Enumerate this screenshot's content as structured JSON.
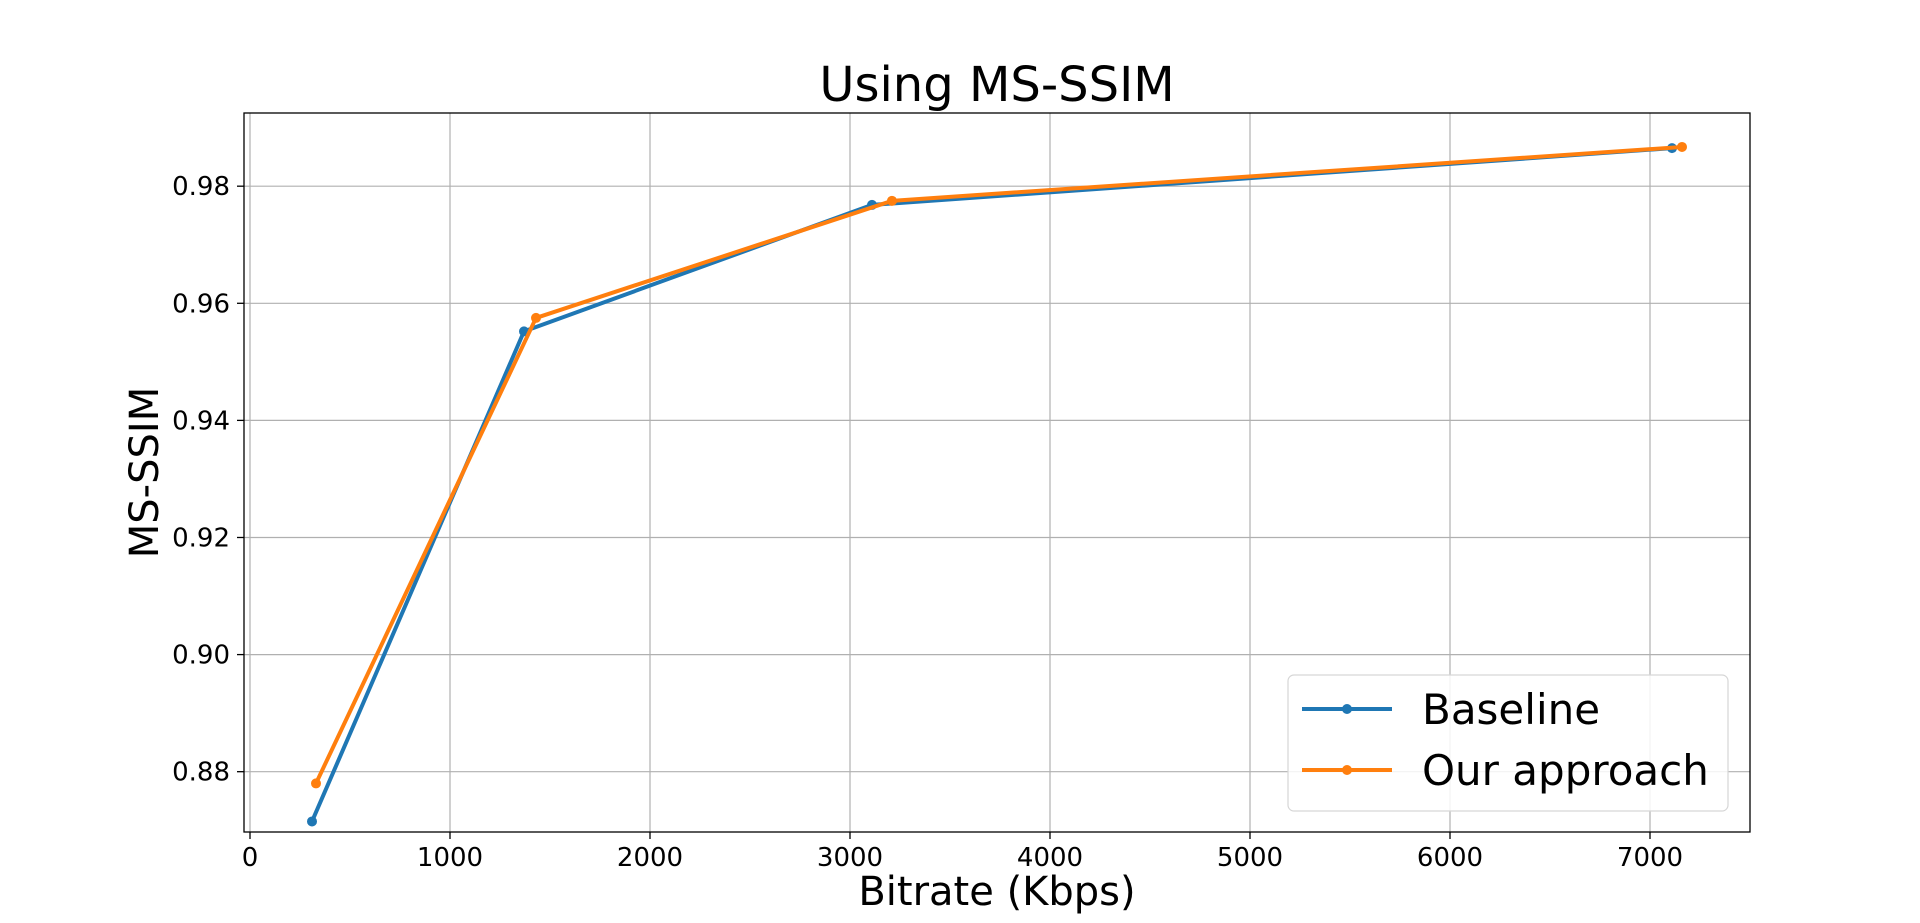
{
  "chart_data": {
    "type": "line",
    "title": "Using MS-SSIM",
    "xlabel": "Bitrate (Kbps)",
    "ylabel": "MS-SSIM",
    "xlim": [
      -30,
      7500
    ],
    "ylim": [
      0.8697,
      0.9925
    ],
    "xticks": [
      0,
      1000,
      2000,
      3000,
      4000,
      5000,
      6000,
      7000
    ],
    "yticks": [
      0.88,
      0.9,
      0.92,
      0.94,
      0.96,
      0.98
    ],
    "xtick_labels": [
      "0",
      "1000",
      "2000",
      "3000",
      "4000",
      "5000",
      "6000",
      "7000"
    ],
    "ytick_labels": [
      "0.88",
      "0.90",
      "0.92",
      "0.94",
      "0.96",
      "0.98"
    ],
    "grid": true,
    "legend_position": "lower-right",
    "series": [
      {
        "name": "Baseline",
        "color": "#1f77b4",
        "x": [
          310,
          1370,
          3110,
          7110
        ],
        "y": [
          0.8715,
          0.9552,
          0.9768,
          0.9865
        ]
      },
      {
        "name": "Our approach",
        "color": "#ff7f0e",
        "x": [
          330,
          1430,
          3210,
          7160
        ],
        "y": [
          0.878,
          0.9575,
          0.9775,
          0.9867
        ]
      }
    ]
  }
}
